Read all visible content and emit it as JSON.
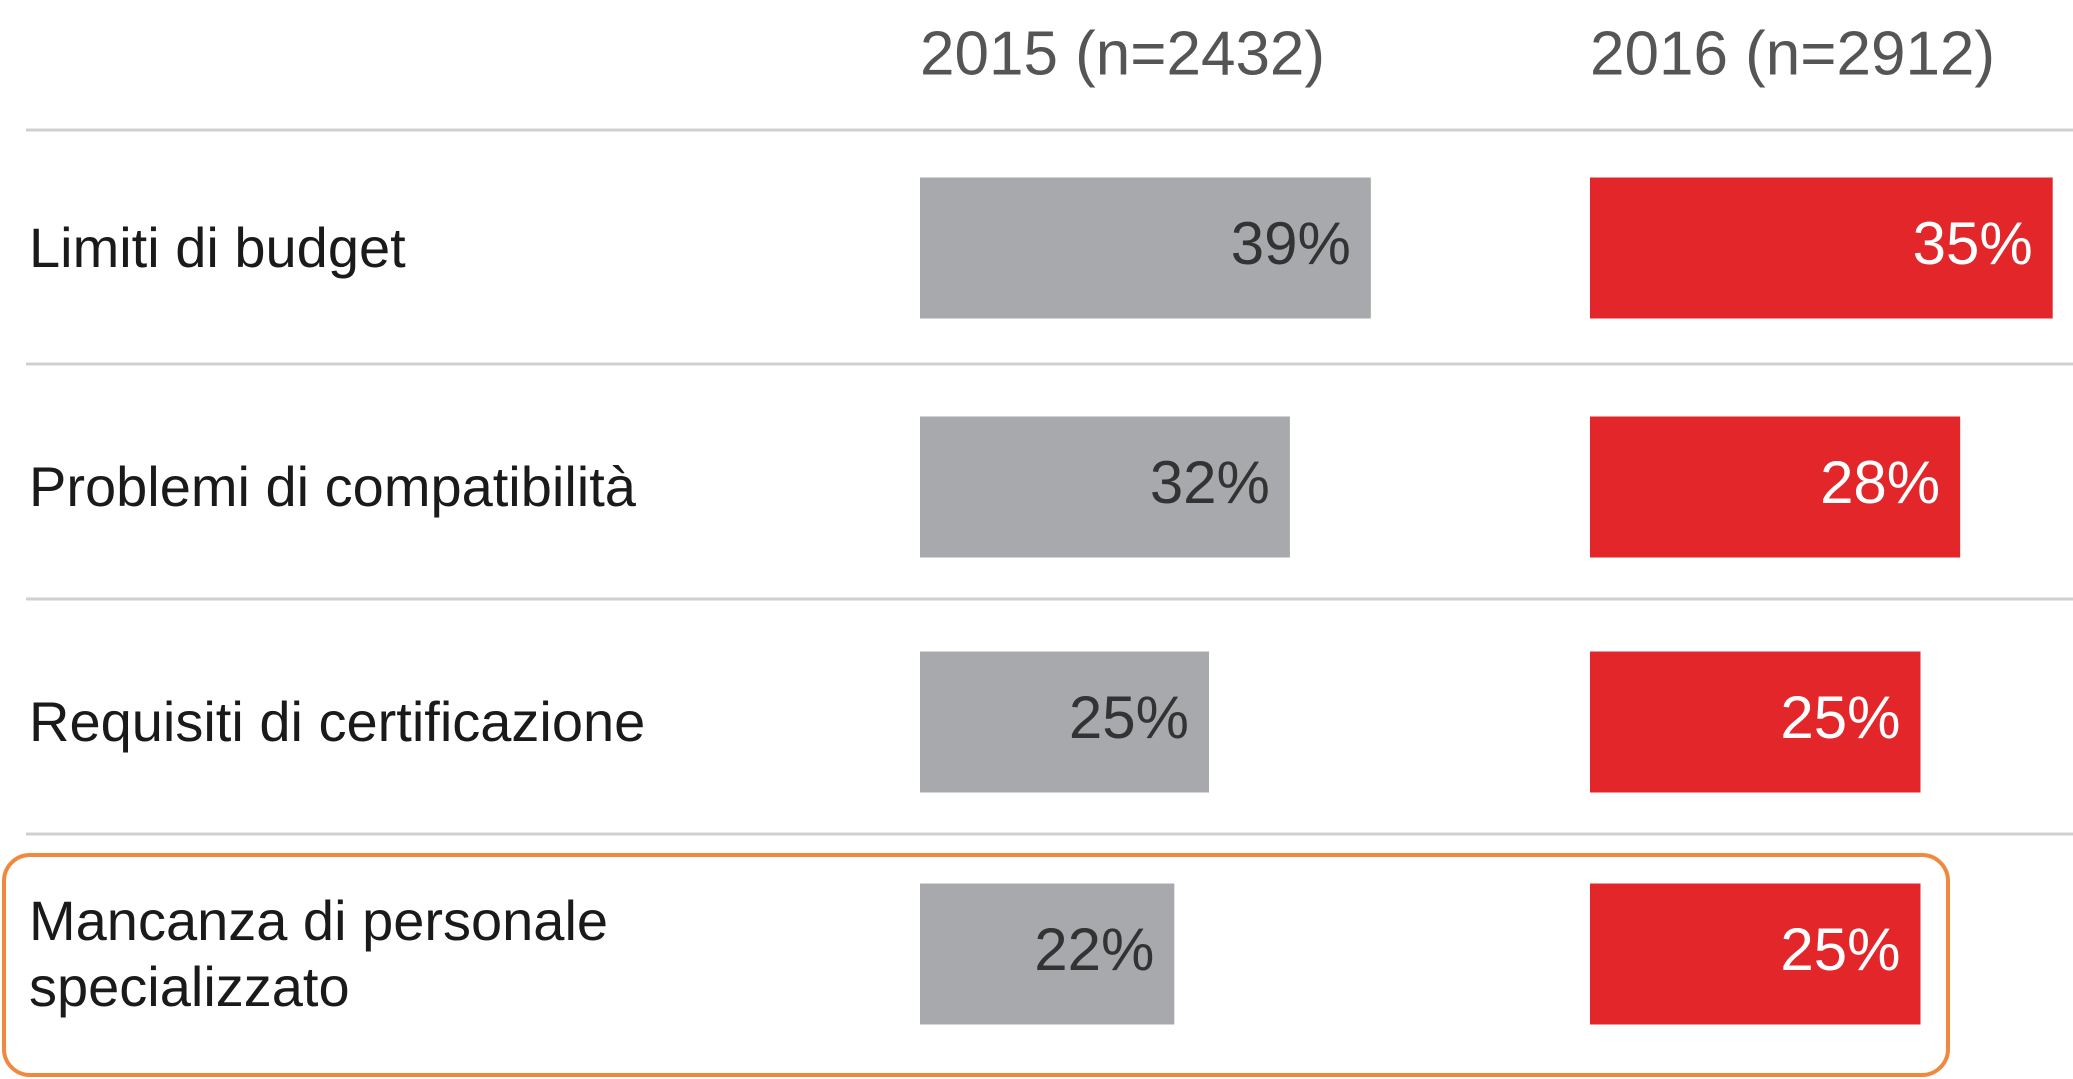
{
  "chart_data": {
    "type": "bar",
    "categories": [
      "Limiti di budget",
      "Problemi di compatibilità",
      "Requisiti di certificazione",
      "Mancanza di personale\nspecializzato"
    ],
    "series": [
      {
        "name": "2015 (n=2432)",
        "color": "#a7a9ac",
        "values": [
          39,
          32,
          25,
          22
        ],
        "value_labels": [
          "39%",
          "32%",
          "25%",
          "22%"
        ]
      },
      {
        "name": "2016 (n=2912)",
        "color": "#e3262a",
        "values": [
          35,
          28,
          25,
          25
        ],
        "value_labels": [
          "35%",
          "28%",
          "25%",
          "25%"
        ]
      }
    ]
  }
}
